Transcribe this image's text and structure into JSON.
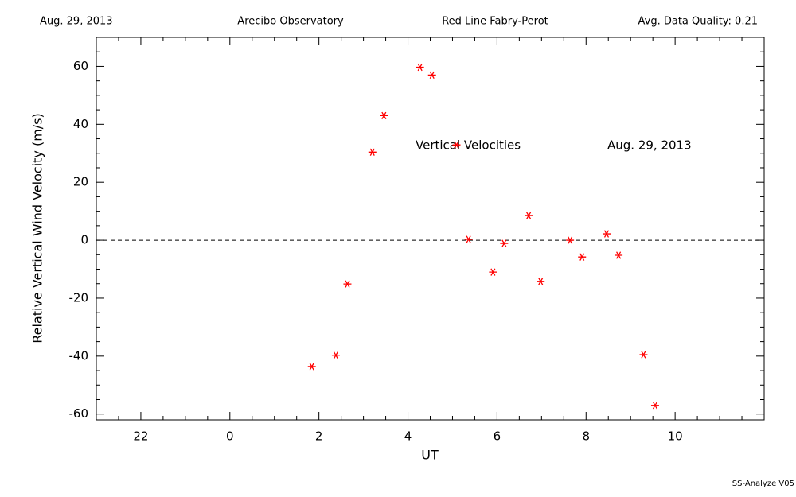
{
  "chart_data": {
    "type": "scatter",
    "header": [
      "Aug. 29, 2013",
      "Arecibo Observatory",
      "Red Line Fabry-Perot",
      "Avg. Data Quality: 0.21"
    ],
    "annotations": [
      "Vertical Velocities",
      "Aug. 29, 2013"
    ],
    "footer": "SS-Analyze V05",
    "x_label": "UT",
    "y_label": "Relative Vertical Wind Velocity (m/s)",
    "x": [
      1.84,
      2.38,
      2.64,
      3.2,
      3.46,
      4.27,
      4.54,
      5.09,
      5.36,
      5.91,
      6.16,
      6.71,
      6.98,
      7.64,
      7.91,
      8.46,
      8.73,
      9.29,
      9.55
    ],
    "values": [
      -43.6,
      -39.7,
      -15.1,
      30.4,
      43.0,
      59.7,
      57.0,
      32.9,
      0.3,
      -11.0,
      -1.1,
      8.5,
      -14.2,
      0,
      -5.8,
      2.2,
      -5.2,
      -39.5,
      -57.0
    ],
    "color": "#ff0000",
    "xlim": [
      -3,
      12
    ],
    "xticks": [
      {
        "value": -2,
        "label": "22"
      },
      0,
      2,
      4,
      6,
      8,
      10
    ],
    "ylim": [
      -62,
      70
    ],
    "yticks": [
      -60,
      -40,
      -20,
      0,
      20,
      40,
      60
    ],
    "minor_ticks": 4,
    "reference_line": 0
  }
}
